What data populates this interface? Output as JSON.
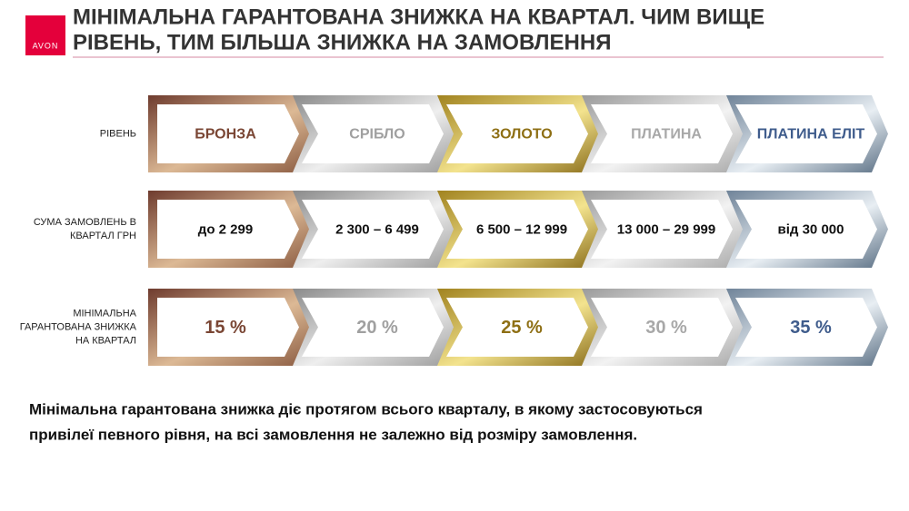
{
  "logo": "AVON",
  "header": {
    "title_lines": [
      "МІНІМАЛЬНА ГАРАНТОВАНА ЗНИЖКА НА КВАРТАЛ. ЧИМ ВИЩЕ",
      "РІВЕНЬ, ТИМ БІЛЬША ЗНИЖКА НА ЗАМОВЛЕННЯ"
    ]
  },
  "table": {
    "rows": [
      {
        "label_lines": [
          "РІВЕНЬ"
        ],
        "cells": [
          "БРОНЗА",
          "СРІБЛО",
          "ЗОЛОТО",
          "ПЛАТИНА",
          "ПЛАТИНА ЕЛІТ"
        ]
      },
      {
        "label_lines": [
          "СУМА ЗАМОВЛЕНЬ В",
          "КВАРТАЛ ГРН"
        ],
        "cells": [
          "до 2 299",
          "2 300 – 6 499",
          "6 500 – 12 999",
          "13 000 – 29 999",
          "від 30 000"
        ]
      },
      {
        "label_lines": [
          "МІНІМАЛЬНА",
          "ГАРАНТОВАНА ЗНИЖКА",
          "НА КВАРТАЛ"
        ],
        "cells": [
          "15 %",
          "20 %",
          "25 %",
          "30 %",
          "35 %"
        ]
      }
    ]
  },
  "footer": {
    "lines": [
      "Мінімальна гарантована знижка діє протягом всього кварталу, в якому застосовуються",
      "привілеї певного рівня, на всі замовлення не залежно від розміру замовлення."
    ]
  }
}
